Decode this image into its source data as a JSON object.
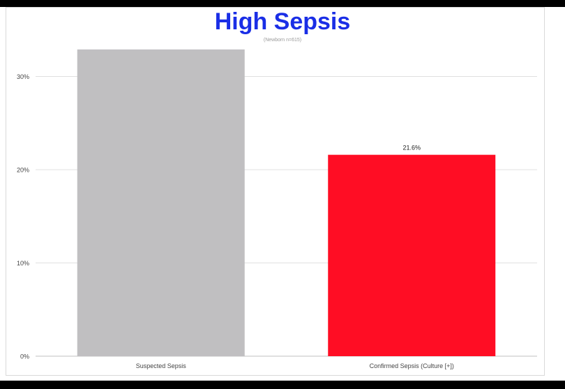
{
  "chart_data": {
    "type": "bar",
    "title": "High Sepsis",
    "subtitle": "(Newborn n=615)",
    "categories": [
      "Suspected Sepsis",
      "Confirmed Sepsis (Culture [+])"
    ],
    "values": [
      32.9,
      21.6
    ],
    "data_labels": [
      "",
      "21.6%"
    ],
    "colors": [
      "#c0bfc1",
      "#ff0d24"
    ],
    "ylim": [
      0,
      33
    ],
    "yticks": [
      0,
      10,
      20,
      30
    ],
    "ytick_labels": [
      "0%",
      "10%",
      "20%",
      "30%"
    ],
    "xlabel": "",
    "ylabel": "",
    "grid": true,
    "legend": "none"
  }
}
